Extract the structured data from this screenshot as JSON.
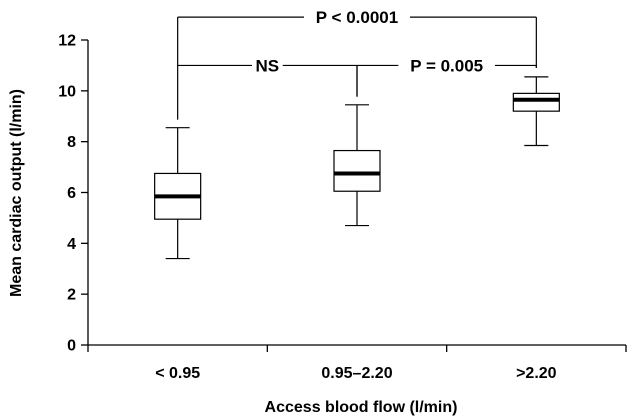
{
  "chart_data": {
    "type": "box",
    "categories": [
      "< 0.95",
      "0.95–2.20",
      ">2.20"
    ],
    "boxes": [
      {
        "category": "< 0.95",
        "min": 3.4,
        "q1": 4.95,
        "median": 5.85,
        "q3": 6.75,
        "max": 8.55
      },
      {
        "category": "0.95–2.20",
        "min": 4.7,
        "q1": 6.05,
        "median": 6.75,
        "q3": 7.65,
        "max": 9.45
      },
      {
        "category": ">2.20",
        "min": 7.85,
        "q1": 9.2,
        "median": 9.65,
        "q3": 9.9,
        "max": 10.55
      }
    ],
    "xlabel": "Access blood flow (l/min)",
    "ylabel": "Mean cardiac output (l/min)",
    "ylim": [
      0,
      12
    ],
    "yticks": [
      0,
      2,
      4,
      6,
      8,
      10,
      12
    ],
    "grid": false,
    "annotations": [
      {
        "text": "P < 0.0001",
        "from": "< 0.95",
        "to": ">2.20",
        "y": 12.9
      },
      {
        "text": "NS",
        "from": "< 0.95",
        "to": "0.95–2.20",
        "y": 11.0
      },
      {
        "text": "P = 0.005",
        "from": "0.95–2.20",
        "to": ">2.20",
        "y": 11.0
      }
    ]
  }
}
